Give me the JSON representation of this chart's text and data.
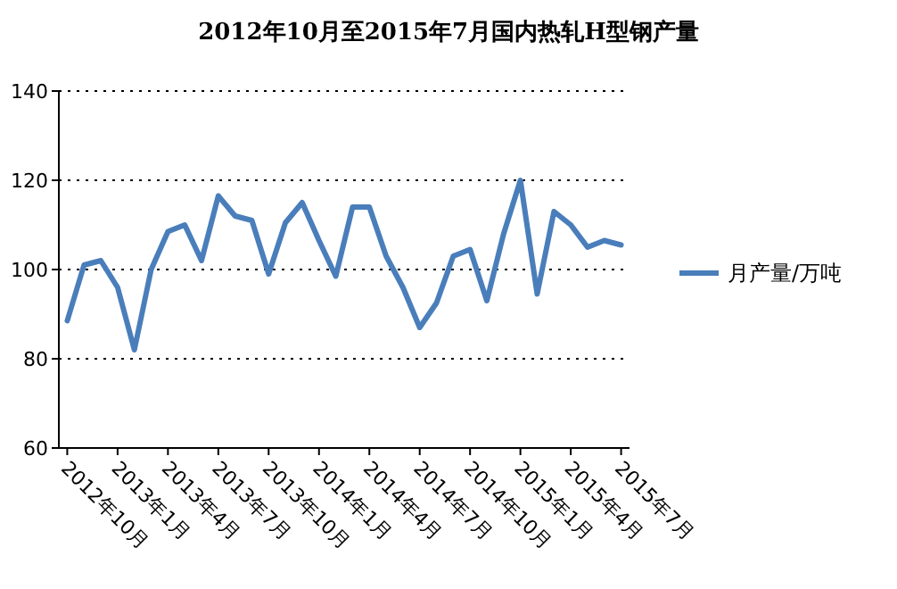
{
  "chart_data": {
    "type": "line",
    "title": "2012年10月至2015年7月国内热轧H型钢产量",
    "categories": [
      "2012年10月",
      null,
      null,
      "2013年1月",
      null,
      null,
      "2013年4月",
      null,
      null,
      "2013年7月",
      null,
      null,
      "2013年10月",
      null,
      null,
      "2014年1月",
      null,
      null,
      "2014年4月",
      null,
      null,
      "2014年7月",
      null,
      null,
      "2014年10月",
      null,
      null,
      "2015年1月",
      null,
      null,
      "2015年4月",
      null,
      null,
      "2015年7月"
    ],
    "series": [
      {
        "name": "月产量/万吨",
        "color": "#4a7ebb",
        "values": [
          88.5,
          101,
          102,
          96,
          82,
          100,
          108.5,
          110,
          102,
          116.5,
          112,
          111,
          99,
          110.5,
          115,
          106.5,
          98.5,
          114,
          114,
          103,
          96,
          87,
          92.5,
          103,
          104.5,
          93,
          108,
          120,
          94.5,
          113,
          110,
          105,
          106.5,
          105.5
        ]
      }
    ],
    "ylim": [
      60,
      140
    ],
    "yticks": [
      60,
      80,
      100,
      120,
      140
    ],
    "grid": "y",
    "legend": "right",
    "marker": "none",
    "line_style": "solid"
  }
}
